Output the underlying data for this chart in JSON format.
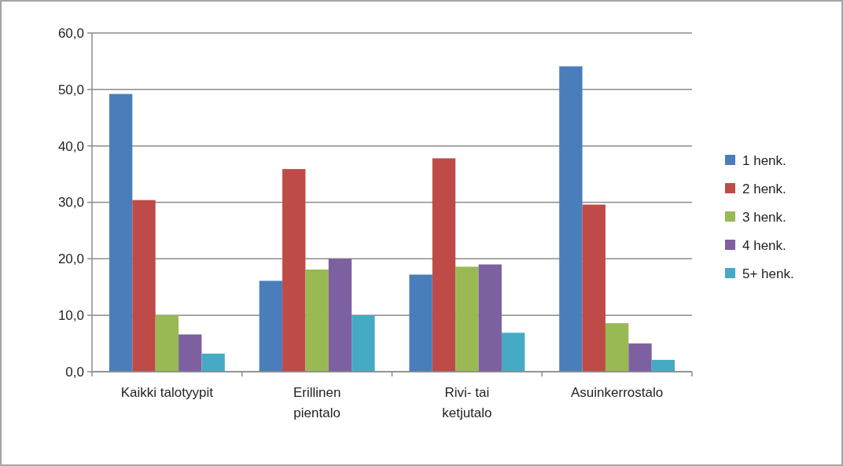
{
  "chart_data": {
    "type": "bar",
    "categories": [
      "Kaikki talotyypit",
      "Erillinen\npientalo",
      "Rivi- tai\nketjutalo",
      "Asuinkerrostalo"
    ],
    "series": [
      {
        "name": "1 henk.",
        "color": "#4a7ebb",
        "values": [
          49.2,
          16.1,
          17.2,
          54.1
        ]
      },
      {
        "name": "2 henk.",
        "color": "#be4b48",
        "values": [
          30.4,
          35.9,
          37.8,
          29.6
        ]
      },
      {
        "name": "3 henk.",
        "color": "#98b954",
        "values": [
          10.0,
          18.1,
          18.6,
          8.6
        ]
      },
      {
        "name": "4 henk.",
        "color": "#7d60a0",
        "values": [
          6.6,
          20.0,
          19.0,
          5.0
        ]
      },
      {
        "name": "5+ henk.",
        "color": "#46aac5",
        "values": [
          3.2,
          10.0,
          6.9,
          2.1
        ]
      }
    ],
    "ylim": [
      0,
      60
    ],
    "yticks": [
      {
        "value": 0,
        "label": "0,0"
      },
      {
        "value": 10,
        "label": "10,0"
      },
      {
        "value": 20,
        "label": "20,0"
      },
      {
        "value": 30,
        "label": "30,0"
      },
      {
        "value": 40,
        "label": "40,0"
      },
      {
        "value": 50,
        "label": "50,0"
      },
      {
        "value": 60,
        "label": "60,0"
      }
    ],
    "grid": "y",
    "legend": "right"
  }
}
